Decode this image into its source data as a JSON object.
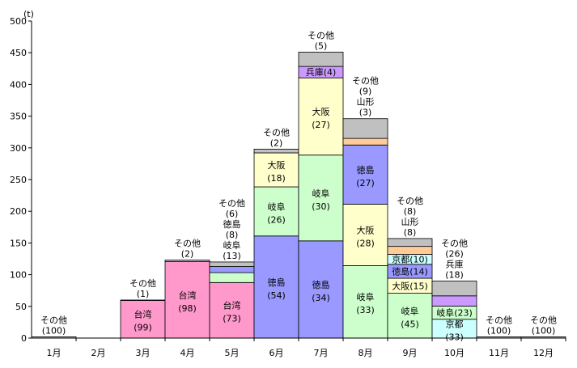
{
  "chart_data": {
    "type": "bar",
    "stacked": true,
    "unit_label": "(t)",
    "ylim": [
      0,
      500
    ],
    "yticks": [
      "0",
      "50",
      "100",
      "150",
      "200",
      "250",
      "300",
      "350",
      "400",
      "450",
      "500"
    ],
    "grid": false,
    "categories": [
      "1月",
      "2月",
      "3月",
      "4月",
      "5月",
      "6月",
      "7月",
      "8月",
      "9月",
      "10月",
      "11月",
      "12月"
    ],
    "colors": {
      "台湾": "#ff99cc",
      "岐阜": "#ccffcc",
      "徳島": "#9999ff",
      "大阪": "#ffffcc",
      "兵庫": "#cc99ff",
      "京都": "#ccffff",
      "山形": "#ffcc99",
      "その他": "#c0c0c0"
    },
    "bars": [
      {
        "month": "1月",
        "total": 2,
        "segments": [
          {
            "name": "その他",
            "value": 2
          }
        ]
      },
      {
        "month": "2月",
        "total": 0,
        "segments": []
      },
      {
        "month": "3月",
        "total": 60,
        "segments": [
          {
            "name": "台湾",
            "value": 59.4,
            "label": "台湾",
            "pct": "(99)"
          },
          {
            "name": "その他",
            "value": 0.6
          }
        ]
      },
      {
        "month": "4月",
        "total": 123,
        "segments": [
          {
            "name": "台湾",
            "value": 120.5,
            "label": "台湾",
            "pct": "(98)"
          },
          {
            "name": "その他",
            "value": 2.5
          }
        ]
      },
      {
        "month": "5月",
        "total": 120,
        "segments": [
          {
            "name": "台湾",
            "value": 87.6,
            "label": "台湾",
            "pct": "(73)"
          },
          {
            "name": "岐阜",
            "value": 15.6
          },
          {
            "name": "徳島",
            "value": 9.6
          },
          {
            "name": "その他",
            "value": 7.2
          }
        ]
      },
      {
        "month": "6月",
        "total": 298,
        "segments": [
          {
            "name": "徳島",
            "value": 161,
            "label": "徳島",
            "pct": "(54)"
          },
          {
            "name": "岐阜",
            "value": 77.5,
            "label": "岐阜",
            "pct": "(26)"
          },
          {
            "name": "大阪",
            "value": 53.6,
            "label": "大阪",
            "pct": "(18)"
          },
          {
            "name": "その他",
            "value": 5.9
          }
        ]
      },
      {
        "month": "7月",
        "total": 451,
        "segments": [
          {
            "name": "徳島",
            "value": 153.3,
            "label": "徳島",
            "pct": "(34)"
          },
          {
            "name": "岐阜",
            "value": 135.3,
            "label": "岐阜",
            "pct": "(30)"
          },
          {
            "name": "大阪",
            "value": 121.8,
            "label": "大阪",
            "pct": "(27)"
          },
          {
            "name": "兵庫",
            "value": 18,
            "label": "兵庫(4)"
          },
          {
            "name": "その他",
            "value": 22.6
          }
        ]
      },
      {
        "month": "8月",
        "total": 346,
        "segments": [
          {
            "name": "岐阜",
            "value": 114.2,
            "label": "岐阜",
            "pct": "(33)"
          },
          {
            "name": "大阪",
            "value": 96.9,
            "label": "大阪",
            "pct": "(28)"
          },
          {
            "name": "徳島",
            "value": 93.4,
            "label": "徳島",
            "pct": "(27)"
          },
          {
            "name": "山形",
            "value": 10.4
          },
          {
            "name": "その他",
            "value": 31.1
          }
        ]
      },
      {
        "month": "9月",
        "total": 157,
        "segments": [
          {
            "name": "岐阜",
            "value": 70.7,
            "label": "岐阜",
            "pct": "(45)"
          },
          {
            "name": "大阪",
            "value": 23.6,
            "label": "大阪(15)"
          },
          {
            "name": "徳島",
            "value": 22,
            "label": "徳島(14)"
          },
          {
            "name": "京都",
            "value": 15.7,
            "label": "京都(10)"
          },
          {
            "name": "山形",
            "value": 12.6
          },
          {
            "name": "その他",
            "value": 12.4
          }
        ]
      },
      {
        "month": "10月",
        "total": 90,
        "segments": [
          {
            "name": "京都",
            "value": 29.7,
            "label": "京都",
            "pct": "(33)"
          },
          {
            "name": "岐阜",
            "value": 20.7,
            "label": "岐阜(23)"
          },
          {
            "name": "兵庫",
            "value": 16.2
          },
          {
            "name": "その他",
            "value": 23.4
          }
        ]
      },
      {
        "month": "11月",
        "total": 2,
        "segments": [
          {
            "name": "その他",
            "value": 2
          }
        ]
      },
      {
        "month": "12月",
        "total": 2,
        "segments": [
          {
            "name": "その他",
            "value": 2
          }
        ]
      }
    ],
    "above_labels": [
      {
        "month": "1月",
        "lines": [
          "その他",
          "(100)"
        ]
      },
      {
        "month": "3月",
        "lines": [
          "その他",
          "(1)"
        ]
      },
      {
        "month": "4月",
        "lines": [
          "その他",
          "(2)"
        ]
      },
      {
        "month": "5月",
        "lines": [
          "その他",
          "(6)",
          "徳島",
          "(8)",
          "岐阜",
          "(13)"
        ]
      },
      {
        "month": "6月",
        "lines": [
          "その他",
          "(2)"
        ]
      },
      {
        "month": "7月",
        "lines": [
          "その他",
          "(5)"
        ]
      },
      {
        "month": "8月",
        "lines": [
          "その他",
          "(9)",
          "山形",
          "(3)"
        ]
      },
      {
        "month": "9月",
        "lines": [
          "その他",
          "(8)",
          "山形",
          "(8)"
        ]
      },
      {
        "month": "10月",
        "lines": [
          "その他",
          "(26)",
          "兵庫",
          "(18)"
        ]
      },
      {
        "month": "11月",
        "lines": [
          "その他",
          "(100)"
        ]
      },
      {
        "month": "12月",
        "lines": [
          "その他",
          "(100)"
        ]
      }
    ]
  }
}
